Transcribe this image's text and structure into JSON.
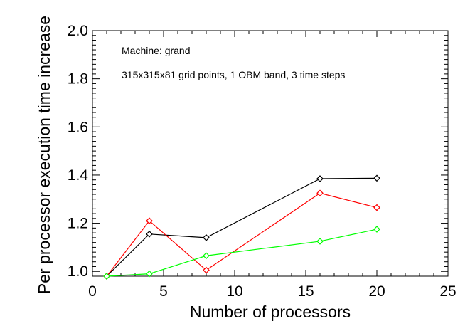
{
  "chart_data": {
    "type": "line",
    "title": "",
    "xlabel": "Number of processors",
    "ylabel": "Per processor execution time increase",
    "xlim": [
      0,
      25
    ],
    "ylim": [
      0.98,
      2.0
    ],
    "xticks": [
      0,
      5,
      10,
      15,
      20,
      25
    ],
    "yticks": [
      1.0,
      1.2,
      1.4,
      1.6,
      1.8,
      2.0
    ],
    "xtick_labels": [
      "0",
      "5",
      "10",
      "15",
      "20",
      "25"
    ],
    "ytick_labels": [
      "1.0",
      "1.2",
      "1.4",
      "1.6",
      "1.8",
      "2.0"
    ],
    "grid": false,
    "marker": "diamond",
    "annotations": [
      "Machine: grand",
      "315x315x81 grid points, 1 OBM band, 3 time steps"
    ],
    "series": [
      {
        "color": "#000000",
        "x": [
          1,
          4,
          8,
          16,
          20
        ],
        "y": [
          0.98,
          1.155,
          1.14,
          1.385,
          1.387
        ]
      },
      {
        "color": "#ff0000",
        "x": [
          1,
          4,
          8,
          16,
          20
        ],
        "y": [
          0.98,
          1.21,
          1.005,
          1.325,
          1.265
        ]
      },
      {
        "color": "#00ff00",
        "x": [
          1,
          4,
          8,
          16,
          20
        ],
        "y": [
          0.98,
          0.99,
          1.065,
          1.125,
          1.175
        ]
      }
    ]
  }
}
